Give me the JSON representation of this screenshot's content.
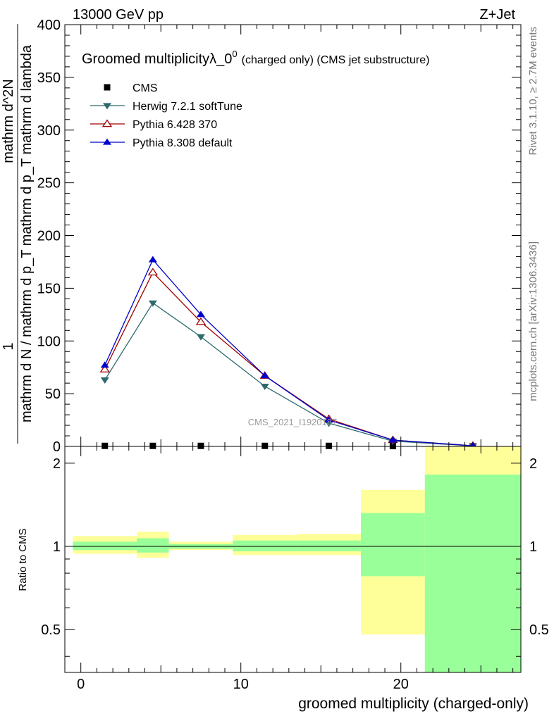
{
  "header": {
    "left": "13000 GeV pp",
    "right": "Z+Jet"
  },
  "side_labels": {
    "rivet": "Rivet 3.1.10, ≥ 2.7M events",
    "mcplots": "mcplots.cern.ch [arXiv:1306.3436]"
  },
  "watermark": "CMS_2021_I1920187",
  "chart_data": [
    {
      "type": "line",
      "title": "Groomed multiplicityλ_0",
      "title_sup": "0",
      "title_suffix": "(charged only) (CMS jet substructure)",
      "ylabel_parts": {
        "frac_num_one": "1",
        "frac_den_main": "mathrm d N / mathrm d p",
        "frac_den_sub": "T",
        "frac_den_tail": "mathrm d p",
        "frac_den_sub2": "T",
        "frac_den_tail2": "mathrm d lambda",
        "num": "mathrm d",
        "num_sup": "2",
        "num_tail": "N"
      },
      "ylabel_top": "mathrm d^2N",
      "ylabel_bottom": "mathrm d N / mathrm d p_T mathrm d p_T mathrm d lambda",
      "xlim": [
        -1,
        27.5
      ],
      "ylim": [
        0,
        400
      ],
      "yticks": [
        0,
        50,
        100,
        150,
        200,
        250,
        300,
        350,
        400
      ],
      "legend_placement": "top-left",
      "x": [
        1.5,
        4.5,
        7.5,
        11.5,
        15.5,
        19.5,
        24.5
      ],
      "series": [
        {
          "name": "CMS",
          "marker": "square",
          "color": "#000000",
          "values": [
            0.5,
            0.5,
            0.5,
            0.5,
            0.5,
            0.3,
            0.1
          ]
        },
        {
          "name": "Herwig 7.2.1 softTune",
          "marker": "triangle-down",
          "color": "#2d6a6e",
          "values": [
            63,
            136,
            104,
            57,
            22,
            5,
            0.5
          ]
        },
        {
          "name": "Pythia 6.428 370",
          "marker": "triangle-up-open",
          "color": "#a00000",
          "values": [
            73,
            165,
            118,
            67,
            26,
            6,
            0.6
          ]
        },
        {
          "name": "Pythia 8.308 default",
          "marker": "triangle-up",
          "color": "#0000cc",
          "values": [
            77,
            177,
            125,
            67,
            25,
            6,
            0.6
          ]
        }
      ]
    },
    {
      "type": "area",
      "ylabel": "Ratio to CMS",
      "xlabel": "groomed multiplicity (charged-only)",
      "xlim": [
        -1,
        27.5
      ],
      "ylim": [
        0.35,
        2.3
      ],
      "xticks": [
        0,
        10,
        20
      ],
      "yticks": [
        0.5,
        1,
        2
      ],
      "reference_line": 1,
      "bins": [
        {
          "lo": -0.5,
          "hi": 3.5,
          "stat": [
            0.97,
            1.04
          ],
          "total": [
            0.94,
            1.09
          ]
        },
        {
          "lo": 3.5,
          "hi": 5.5,
          "stat": [
            0.95,
            1.07
          ],
          "total": [
            0.91,
            1.13
          ]
        },
        {
          "lo": 5.5,
          "hi": 9.5,
          "stat": [
            0.98,
            1.02
          ],
          "total": [
            0.97,
            1.04
          ]
        },
        {
          "lo": 9.5,
          "hi": 13.5,
          "stat": [
            0.96,
            1.05
          ],
          "total": [
            0.93,
            1.1
          ]
        },
        {
          "lo": 13.5,
          "hi": 17.5,
          "stat": [
            0.96,
            1.05
          ],
          "total": [
            0.93,
            1.11
          ]
        },
        {
          "lo": 17.5,
          "hi": 21.5,
          "stat": [
            0.78,
            1.32
          ],
          "total": [
            0.48,
            1.6
          ]
        },
        {
          "lo": 21.5,
          "hi": 27.5,
          "stat": [
            0.34,
            1.82
          ],
          "total": [
            0.34,
            2.35
          ]
        }
      ]
    }
  ],
  "colors": {
    "stat_band": "#99ff99",
    "total_band": "#ffff99"
  }
}
